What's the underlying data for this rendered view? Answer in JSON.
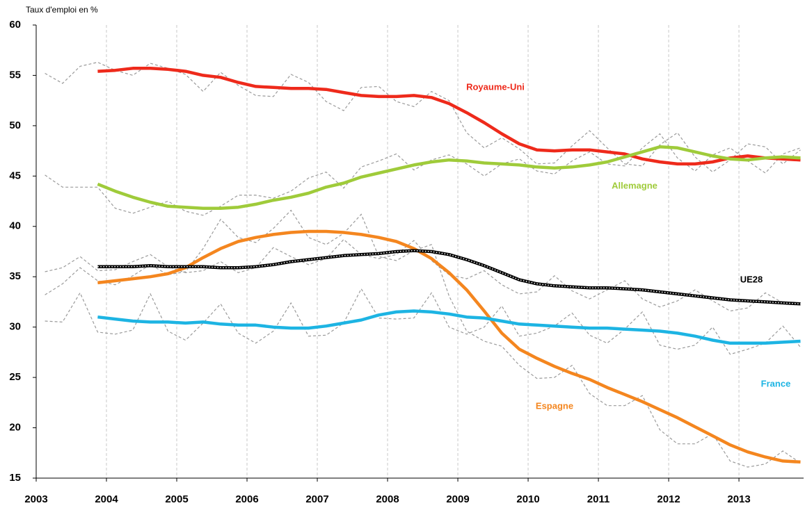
{
  "chart_data": {
    "type": "line",
    "y_label": "Taux d'emploi en %",
    "x": [
      2003.125,
      2003.375,
      2003.625,
      2003.875,
      2004.125,
      2004.375,
      2004.625,
      2004.875,
      2005.125,
      2005.375,
      2005.625,
      2005.875,
      2006.125,
      2006.375,
      2006.625,
      2006.875,
      2007.125,
      2007.375,
      2007.625,
      2007.875,
      2008.125,
      2008.375,
      2008.625,
      2008.875,
      2009.125,
      2009.375,
      2009.625,
      2009.875,
      2010.125,
      2010.375,
      2010.625,
      2010.875,
      2011.125,
      2011.375,
      2011.625,
      2011.875,
      2012.125,
      2012.375,
      2012.625,
      2012.875,
      2013.125,
      2013.375,
      2013.625,
      2013.875
    ],
    "xlim": [
      2003,
      2013.92
    ],
    "xticks": [
      2003,
      2004,
      2005,
      2006,
      2007,
      2008,
      2009,
      2010,
      2011,
      2012,
      2013
    ],
    "ylim": [
      15,
      60
    ],
    "yticks": [
      15,
      20,
      25,
      30,
      35,
      40,
      45,
      50,
      55,
      60
    ],
    "grid": true,
    "series": [
      {
        "color": "#9a9a9a",
        "dash": true,
        "values": [
          55.2,
          54.2,
          55.9,
          56.3,
          55.5,
          55.0,
          56.2,
          55.7,
          55.1,
          53.4,
          55.3,
          54.0,
          53.0,
          52.9,
          55.1,
          54.3,
          52.4,
          51.5,
          53.8,
          53.9,
          52.4,
          51.9,
          53.4,
          52.5,
          49.3,
          47.8,
          48.8,
          47.7,
          46.2,
          46.3,
          48.0,
          49.5,
          47.8,
          46.2,
          46.0,
          48.1,
          49.3,
          46.9,
          45.4,
          46.6,
          48.2,
          47.9,
          46.2,
          47.6
        ]
      },
      {
        "color": "#9a9a9a",
        "dash": true,
        "values": [
          45.1,
          43.9,
          43.9,
          43.9,
          41.8,
          41.3,
          41.9,
          42.5,
          41.5,
          41.1,
          42.0,
          43.1,
          43.1,
          42.8,
          43.5,
          44.8,
          45.4,
          43.8,
          45.9,
          46.5,
          47.2,
          45.6,
          46.6,
          47.1,
          46.2,
          45.0,
          46.2,
          46.7,
          45.5,
          45.2,
          46.5,
          47.4,
          46.2,
          46.0,
          47.8,
          49.2,
          46.8,
          45.5,
          47.1,
          47.8,
          46.5,
          45.3,
          47.2,
          47.8
        ]
      },
      {
        "color": "#9a9a9a",
        "dash": true,
        "values": [
          33.2,
          34.3,
          35.9,
          34.6,
          34.2,
          35.1,
          36.2,
          35.2,
          35.5,
          37.8,
          40.7,
          38.9,
          38.4,
          39.8,
          41.6,
          38.9,
          38.2,
          39.3,
          41.2,
          37.0,
          36.6,
          37.6,
          38.2,
          33.1,
          29.6,
          28.6,
          28.1,
          26.2,
          24.9,
          25.0,
          26.2,
          23.4,
          22.2,
          22.2,
          23.2,
          19.8,
          18.4,
          18.4,
          19.4,
          16.7,
          16.1,
          16.4,
          17.7,
          16.5
        ]
      },
      {
        "color": "#9a9a9a",
        "dash": true,
        "values": [
          35.5,
          35.9,
          37.0,
          35.6,
          35.7,
          36.5,
          37.2,
          36.0,
          35.4,
          35.6,
          36.5,
          35.4,
          35.9,
          37.9,
          37.0,
          36.2,
          36.8,
          38.7,
          37.2,
          36.8,
          37.2,
          38.6,
          36.6,
          35.2,
          34.8,
          35.6,
          34.2,
          33.3,
          33.5,
          35.1,
          33.6,
          32.8,
          33.7,
          34.6,
          32.8,
          32.0,
          32.6,
          33.7,
          32.6,
          31.6,
          31.9,
          33.4,
          32.4,
          32.2
        ]
      },
      {
        "color": "#9a9a9a",
        "dash": true,
        "values": [
          30.6,
          30.5,
          33.4,
          29.5,
          29.3,
          29.7,
          33.3,
          29.6,
          28.7,
          30.4,
          32.3,
          29.4,
          28.4,
          29.6,
          32.4,
          29.1,
          29.2,
          30.4,
          33.8,
          30.9,
          30.8,
          30.9,
          33.4,
          30.0,
          29.3,
          30.0,
          32.1,
          29.1,
          29.4,
          30.1,
          31.4,
          29.2,
          28.4,
          29.8,
          31.5,
          28.2,
          27.8,
          28.2,
          30.0,
          27.3,
          27.8,
          28.4,
          30.1,
          28.0
        ]
      },
      {
        "name": "Royaume-Uni",
        "color": "#ee2a1b",
        "values": [
          null,
          null,
          null,
          55.4,
          55.5,
          55.7,
          55.7,
          55.6,
          55.4,
          55.0,
          54.8,
          54.3,
          53.9,
          53.8,
          53.7,
          53.7,
          53.6,
          53.3,
          53.0,
          52.9,
          52.9,
          53.0,
          52.8,
          52.2,
          51.3,
          50.3,
          49.2,
          48.2,
          47.6,
          47.5,
          47.6,
          47.6,
          47.4,
          47.2,
          46.7,
          46.4,
          46.2,
          46.2,
          46.4,
          46.8,
          47.0,
          46.8,
          46.7,
          46.6
        ]
      },
      {
        "name": "Allemagne",
        "color": "#9fcb3a",
        "values": [
          null,
          null,
          null,
          44.2,
          43.5,
          42.9,
          42.4,
          42.0,
          41.9,
          41.8,
          41.8,
          41.9,
          42.2,
          42.6,
          42.9,
          43.3,
          43.9,
          44.3,
          44.9,
          45.3,
          45.7,
          46.1,
          46.4,
          46.6,
          46.5,
          46.3,
          46.2,
          46.1,
          45.9,
          45.8,
          45.9,
          46.1,
          46.4,
          46.9,
          47.4,
          47.9,
          47.8,
          47.4,
          47.0,
          46.7,
          46.6,
          46.8,
          46.9,
          46.8
        ]
      },
      {
        "name": "Espagne",
        "color": "#f4861f",
        "values": [
          null,
          null,
          null,
          34.4,
          34.6,
          34.8,
          35.0,
          35.3,
          35.9,
          36.9,
          37.8,
          38.5,
          38.9,
          39.2,
          39.4,
          39.5,
          39.5,
          39.4,
          39.2,
          38.9,
          38.5,
          37.8,
          36.8,
          35.4,
          33.7,
          31.6,
          29.4,
          27.8,
          26.9,
          26.1,
          25.4,
          24.8,
          24.0,
          23.3,
          22.6,
          21.8,
          21.0,
          20.1,
          19.2,
          18.3,
          17.6,
          17.1,
          16.7,
          16.6
        ]
      },
      {
        "name": "UE28",
        "color": "#000000",
        "values": [
          null,
          null,
          null,
          36.0,
          36.0,
          36.0,
          36.1,
          36.0,
          36.0,
          36.0,
          35.9,
          35.9,
          36.0,
          36.2,
          36.5,
          36.7,
          36.9,
          37.1,
          37.2,
          37.3,
          37.5,
          37.6,
          37.5,
          37.2,
          36.7,
          36.1,
          35.4,
          34.7,
          34.3,
          34.1,
          34.0,
          33.9,
          33.9,
          33.8,
          33.7,
          33.5,
          33.3,
          33.1,
          32.9,
          32.7,
          32.6,
          32.5,
          32.4,
          32.3
        ]
      },
      {
        "name": "France",
        "color": "#1db4e3",
        "values": [
          null,
          null,
          null,
          31.0,
          30.8,
          30.6,
          30.5,
          30.5,
          30.4,
          30.5,
          30.3,
          30.2,
          30.2,
          30.0,
          29.9,
          29.9,
          30.1,
          30.4,
          30.7,
          31.2,
          31.5,
          31.6,
          31.5,
          31.3,
          31.0,
          30.9,
          30.6,
          30.3,
          30.2,
          30.1,
          30.0,
          29.9,
          29.9,
          29.8,
          29.7,
          29.6,
          29.4,
          29.1,
          28.7,
          28.4,
          28.4,
          28.4,
          28.5,
          28.6
        ]
      }
    ]
  }
}
